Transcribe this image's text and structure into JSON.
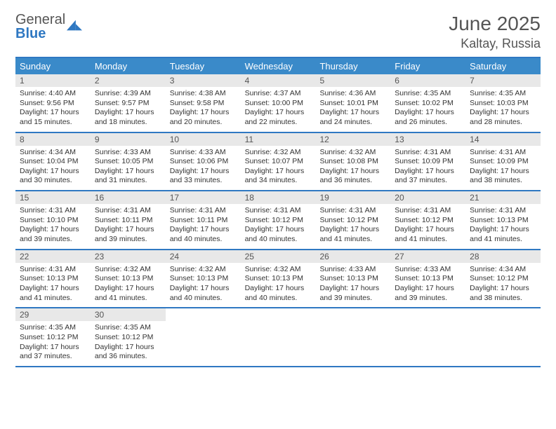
{
  "logo": {
    "text_gray": "General",
    "text_blue": "Blue"
  },
  "title": "June 2025",
  "location": "Kaltay, Russia",
  "colors": {
    "header_bg": "#3a8ac9",
    "border": "#2f78c2",
    "daynum_bg": "#e8e8e8",
    "text": "#333333",
    "page_bg": "#ffffff"
  },
  "days_of_week": [
    "Sunday",
    "Monday",
    "Tuesday",
    "Wednesday",
    "Thursday",
    "Friday",
    "Saturday"
  ],
  "weeks": [
    [
      {
        "n": "1",
        "sunrise": "Sunrise: 4:40 AM",
        "sunset": "Sunset: 9:56 PM",
        "day": "Daylight: 17 hours and 15 minutes."
      },
      {
        "n": "2",
        "sunrise": "Sunrise: 4:39 AM",
        "sunset": "Sunset: 9:57 PM",
        "day": "Daylight: 17 hours and 18 minutes."
      },
      {
        "n": "3",
        "sunrise": "Sunrise: 4:38 AM",
        "sunset": "Sunset: 9:58 PM",
        "day": "Daylight: 17 hours and 20 minutes."
      },
      {
        "n": "4",
        "sunrise": "Sunrise: 4:37 AM",
        "sunset": "Sunset: 10:00 PM",
        "day": "Daylight: 17 hours and 22 minutes."
      },
      {
        "n": "5",
        "sunrise": "Sunrise: 4:36 AM",
        "sunset": "Sunset: 10:01 PM",
        "day": "Daylight: 17 hours and 24 minutes."
      },
      {
        "n": "6",
        "sunrise": "Sunrise: 4:35 AM",
        "sunset": "Sunset: 10:02 PM",
        "day": "Daylight: 17 hours and 26 minutes."
      },
      {
        "n": "7",
        "sunrise": "Sunrise: 4:35 AM",
        "sunset": "Sunset: 10:03 PM",
        "day": "Daylight: 17 hours and 28 minutes."
      }
    ],
    [
      {
        "n": "8",
        "sunrise": "Sunrise: 4:34 AM",
        "sunset": "Sunset: 10:04 PM",
        "day": "Daylight: 17 hours and 30 minutes."
      },
      {
        "n": "9",
        "sunrise": "Sunrise: 4:33 AM",
        "sunset": "Sunset: 10:05 PM",
        "day": "Daylight: 17 hours and 31 minutes."
      },
      {
        "n": "10",
        "sunrise": "Sunrise: 4:33 AM",
        "sunset": "Sunset: 10:06 PM",
        "day": "Daylight: 17 hours and 33 minutes."
      },
      {
        "n": "11",
        "sunrise": "Sunrise: 4:32 AM",
        "sunset": "Sunset: 10:07 PM",
        "day": "Daylight: 17 hours and 34 minutes."
      },
      {
        "n": "12",
        "sunrise": "Sunrise: 4:32 AM",
        "sunset": "Sunset: 10:08 PM",
        "day": "Daylight: 17 hours and 36 minutes."
      },
      {
        "n": "13",
        "sunrise": "Sunrise: 4:31 AM",
        "sunset": "Sunset: 10:09 PM",
        "day": "Daylight: 17 hours and 37 minutes."
      },
      {
        "n": "14",
        "sunrise": "Sunrise: 4:31 AM",
        "sunset": "Sunset: 10:09 PM",
        "day": "Daylight: 17 hours and 38 minutes."
      }
    ],
    [
      {
        "n": "15",
        "sunrise": "Sunrise: 4:31 AM",
        "sunset": "Sunset: 10:10 PM",
        "day": "Daylight: 17 hours and 39 minutes."
      },
      {
        "n": "16",
        "sunrise": "Sunrise: 4:31 AM",
        "sunset": "Sunset: 10:11 PM",
        "day": "Daylight: 17 hours and 39 minutes."
      },
      {
        "n": "17",
        "sunrise": "Sunrise: 4:31 AM",
        "sunset": "Sunset: 10:11 PM",
        "day": "Daylight: 17 hours and 40 minutes."
      },
      {
        "n": "18",
        "sunrise": "Sunrise: 4:31 AM",
        "sunset": "Sunset: 10:12 PM",
        "day": "Daylight: 17 hours and 40 minutes."
      },
      {
        "n": "19",
        "sunrise": "Sunrise: 4:31 AM",
        "sunset": "Sunset: 10:12 PM",
        "day": "Daylight: 17 hours and 41 minutes."
      },
      {
        "n": "20",
        "sunrise": "Sunrise: 4:31 AM",
        "sunset": "Sunset: 10:12 PM",
        "day": "Daylight: 17 hours and 41 minutes."
      },
      {
        "n": "21",
        "sunrise": "Sunrise: 4:31 AM",
        "sunset": "Sunset: 10:13 PM",
        "day": "Daylight: 17 hours and 41 minutes."
      }
    ],
    [
      {
        "n": "22",
        "sunrise": "Sunrise: 4:31 AM",
        "sunset": "Sunset: 10:13 PM",
        "day": "Daylight: 17 hours and 41 minutes."
      },
      {
        "n": "23",
        "sunrise": "Sunrise: 4:32 AM",
        "sunset": "Sunset: 10:13 PM",
        "day": "Daylight: 17 hours and 41 minutes."
      },
      {
        "n": "24",
        "sunrise": "Sunrise: 4:32 AM",
        "sunset": "Sunset: 10:13 PM",
        "day": "Daylight: 17 hours and 40 minutes."
      },
      {
        "n": "25",
        "sunrise": "Sunrise: 4:32 AM",
        "sunset": "Sunset: 10:13 PM",
        "day": "Daylight: 17 hours and 40 minutes."
      },
      {
        "n": "26",
        "sunrise": "Sunrise: 4:33 AM",
        "sunset": "Sunset: 10:13 PM",
        "day": "Daylight: 17 hours and 39 minutes."
      },
      {
        "n": "27",
        "sunrise": "Sunrise: 4:33 AM",
        "sunset": "Sunset: 10:13 PM",
        "day": "Daylight: 17 hours and 39 minutes."
      },
      {
        "n": "28",
        "sunrise": "Sunrise: 4:34 AM",
        "sunset": "Sunset: 10:12 PM",
        "day": "Daylight: 17 hours and 38 minutes."
      }
    ],
    [
      {
        "n": "29",
        "sunrise": "Sunrise: 4:35 AM",
        "sunset": "Sunset: 10:12 PM",
        "day": "Daylight: 17 hours and 37 minutes."
      },
      {
        "n": "30",
        "sunrise": "Sunrise: 4:35 AM",
        "sunset": "Sunset: 10:12 PM",
        "day": "Daylight: 17 hours and 36 minutes."
      },
      {
        "empty": true
      },
      {
        "empty": true
      },
      {
        "empty": true
      },
      {
        "empty": true
      },
      {
        "empty": true
      }
    ]
  ]
}
